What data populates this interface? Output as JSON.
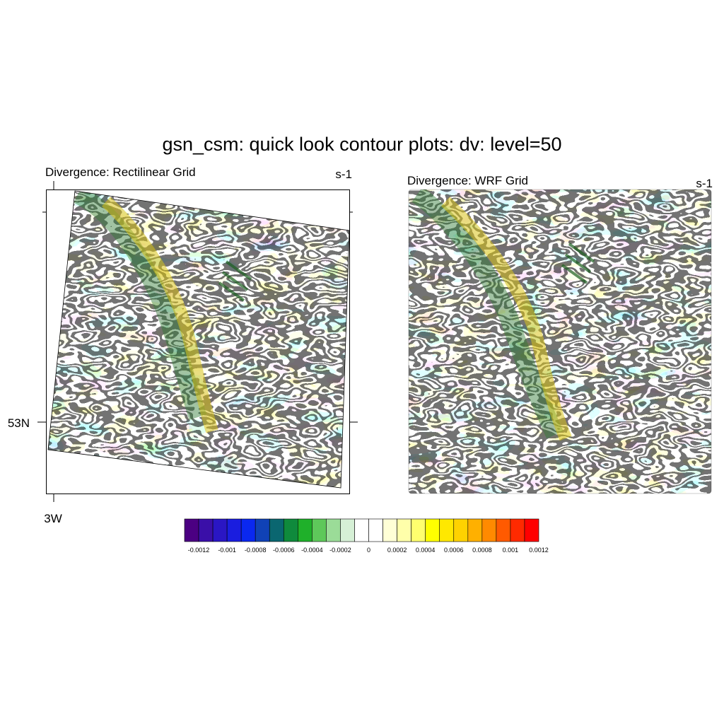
{
  "figure": {
    "title": "gsn_csm: quick look contour plots: dv: level=50"
  },
  "panels": [
    {
      "title": "Divergence: Rectilinear Grid",
      "units": "s-1",
      "lat_tick_label": "53N",
      "lon_tick_label": "3W"
    },
    {
      "title": "Divergence: WRF Grid",
      "units": "s-1"
    }
  ],
  "colorbar": {
    "colors": [
      "#4b0082",
      "#3a0fa8",
      "#2a16c4",
      "#1a1ddf",
      "#0a28f0",
      "#1042b6",
      "#0a6670",
      "#0f8a3c",
      "#1fb02a",
      "#5ec85a",
      "#9bdc98",
      "#d6f0d6",
      "#ffffff",
      "#ffffff",
      "#ffffd6",
      "#ffffaa",
      "#ffff6e",
      "#ffff00",
      "#ffe800",
      "#ffd200",
      "#ffb000",
      "#ff8a00",
      "#ff5a00",
      "#ff2a00",
      "#ff0000"
    ],
    "labels": [
      "-0.0012",
      "-0.001",
      "-0.0008",
      "-0.0006",
      "-0.0004",
      "-0.0002",
      "0",
      "0.0002",
      "0.0004",
      "0.0006",
      "0.0008",
      "0.001",
      "0.0012"
    ]
  }
}
